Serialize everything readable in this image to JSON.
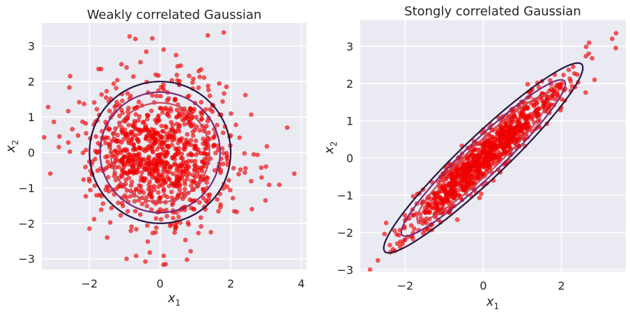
{
  "chart_data": [
    {
      "type": "scatter",
      "title": "Weakly correlated Gaussian",
      "xlabel": "x",
      "xlabel_sub": "1",
      "ylabel": "x",
      "ylabel_sub": "2",
      "xlim": [
        -3.35,
        4.15
      ],
      "ylim": [
        -3.3,
        3.65
      ],
      "xticks": [
        -2,
        0,
        2,
        4
      ],
      "yticks": [
        -3,
        -2,
        -1,
        0,
        1,
        2,
        3
      ],
      "xtick_labels": [
        "−2",
        "0",
        "2",
        "4"
      ],
      "ytick_labels": [
        "−3",
        "−2",
        "−1",
        "0",
        "1",
        "2",
        "3"
      ],
      "correlation": 0.0,
      "n_points": 1000,
      "highlight_points": [
        [
          -2.85,
          0.45
        ],
        [
          -2.55,
          2.15
        ],
        [
          -2.0,
          -2.15
        ],
        [
          -0.95,
          -3.0
        ],
        [
          3.6,
          0.7
        ],
        [
          3.8,
          -0.6
        ],
        [
          1.35,
          3.3
        ],
        [
          -0.7,
          3.2
        ],
        [
          0.1,
          2.9
        ],
        [
          -1.5,
          -2.4
        ],
        [
          2.6,
          -1.6
        ],
        [
          3.0,
          -0.4
        ]
      ],
      "contour_levels": [
        "inner",
        "mid",
        "outer"
      ],
      "contour_colors": [
        "#c94a58",
        "#7a2a78",
        "#2a1442"
      ],
      "contour_radii": [
        1.4,
        1.7,
        2.0
      ],
      "grid": true,
      "background": "#eaeaf2",
      "point_color": "#ff0000",
      "point_alpha": 0.65
    },
    {
      "type": "scatter",
      "title": "Stongly correlated Gaussian",
      "xlabel": "x",
      "xlabel_sub": "1",
      "ylabel": "x",
      "ylabel_sub": "2",
      "xlim": [
        -3.15,
        3.65
      ],
      "ylim": [
        -3.05,
        3.7
      ],
      "xticks": [
        -2,
        0,
        2
      ],
      "yticks": [
        -3,
        -2,
        -1,
        0,
        1,
        2,
        3
      ],
      "xtick_labels": [
        "−2",
        "0",
        "2"
      ],
      "ytick_labels": [
        "−3",
        "−2",
        "−1",
        "0",
        "1",
        "2",
        "3"
      ],
      "correlation": 0.95,
      "n_points": 1000,
      "highlight_points": [
        [
          3.4,
          3.35
        ],
        [
          3.3,
          3.2
        ],
        [
          -2.9,
          -3.0
        ],
        [
          -2.7,
          -2.75
        ],
        [
          2.7,
          2.8
        ],
        [
          2.85,
          2.1
        ],
        [
          2.3,
          2.45
        ],
        [
          -2.2,
          -2.3
        ]
      ],
      "contour_levels": [
        "inner",
        "mid",
        "outer"
      ],
      "contour_colors": [
        "#c94a58",
        "#7a2a78",
        "#2a1442"
      ],
      "contour_scale": [
        1.7,
        2.1,
        2.55
      ],
      "grid": true,
      "background": "#eaeaf2",
      "point_color": "#ff0000",
      "point_alpha": 0.65
    }
  ]
}
